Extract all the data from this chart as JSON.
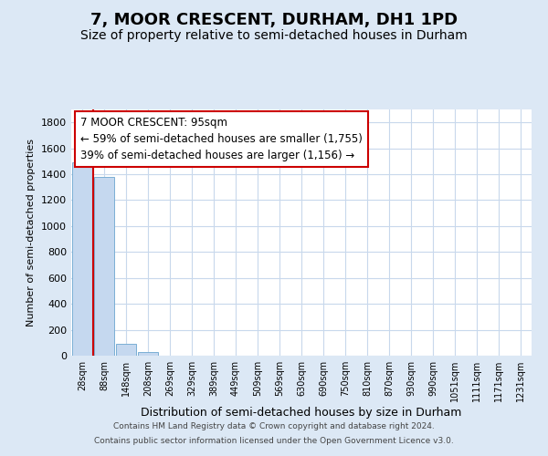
{
  "title": "7, MOOR CRESCENT, DURHAM, DH1 1PD",
  "subtitle": "Size of property relative to semi-detached houses in Durham",
  "xlabel": "Distribution of semi-detached houses by size in Durham",
  "ylabel": "Number of semi-detached properties",
  "categories": [
    "28sqm",
    "88sqm",
    "148sqm",
    "208sqm",
    "269sqm",
    "329sqm",
    "389sqm",
    "449sqm",
    "509sqm",
    "569sqm",
    "630sqm",
    "690sqm",
    "750sqm",
    "810sqm",
    "870sqm",
    "930sqm",
    "990sqm",
    "1051sqm",
    "1111sqm",
    "1171sqm",
    "1231sqm"
  ],
  "values": [
    1490,
    1380,
    95,
    25,
    2,
    1,
    0,
    0,
    0,
    0,
    0,
    0,
    0,
    0,
    0,
    0,
    0,
    0,
    0,
    0,
    0
  ],
  "bar_color": "#c5d8ef",
  "bar_edge_color": "#7aafd4",
  "vline_color": "#cc0000",
  "vline_x": 0.5,
  "annotation_text": "7 MOOR CRESCENT: 95sqm\n← 59% of semi-detached houses are smaller (1,755)\n39% of semi-detached houses are larger (1,156) →",
  "annotation_box_facecolor": "#ffffff",
  "annotation_box_edgecolor": "#cc0000",
  "ylim": [
    0,
    1900
  ],
  "yticks": [
    0,
    200,
    400,
    600,
    800,
    1000,
    1200,
    1400,
    1600,
    1800
  ],
  "bg_color": "#dce8f5",
  "plot_bg_color": "#ffffff",
  "grid_color": "#c8d8ec",
  "title_fontsize": 13,
  "subtitle_fontsize": 10,
  "footer1": "Contains HM Land Registry data © Crown copyright and database right 2024.",
  "footer2": "Contains public sector information licensed under the Open Government Licence v3.0."
}
